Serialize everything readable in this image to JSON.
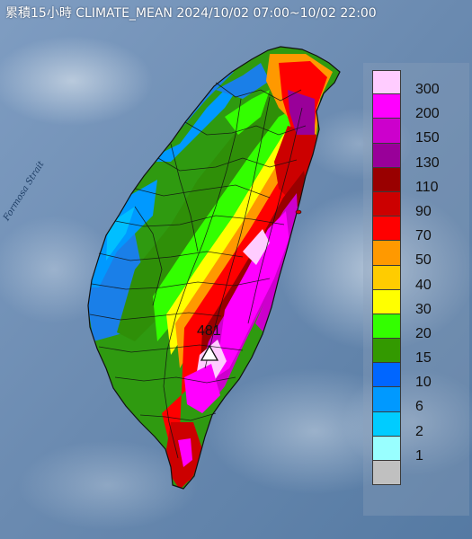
{
  "title": "累積15小時 CLIMATE_MEAN 2024/10/02 07:00~10/02 22:00",
  "sea_label": "Formosa Strait",
  "peak": {
    "value": "481",
    "symbol": "triangle-marker"
  },
  "legend": {
    "items": [
      {
        "label": "300",
        "color": "#ffccff"
      },
      {
        "label": "200",
        "color": "#ff00ff"
      },
      {
        "label": "150",
        "color": "#cc00cc"
      },
      {
        "label": "130",
        "color": "#990099"
      },
      {
        "label": "110",
        "color": "#990000"
      },
      {
        "label": "90",
        "color": "#cc0000"
      },
      {
        "label": "70",
        "color": "#ff0000"
      },
      {
        "label": "50",
        "color": "#ff9900"
      },
      {
        "label": "40",
        "color": "#ffcc00"
      },
      {
        "label": "30",
        "color": "#ffff00"
      },
      {
        "label": "20",
        "color": "#33ff00"
      },
      {
        "label": "15",
        "color": "#339900"
      },
      {
        "label": "10",
        "color": "#0066ff"
      },
      {
        "label": "6",
        "color": "#0099ff"
      },
      {
        "label": "2",
        "color": "#00ccff"
      },
      {
        "label": "1",
        "color": "#99ffff"
      },
      {
        "label": "",
        "color": "#c0c0c0"
      }
    ]
  }
}
